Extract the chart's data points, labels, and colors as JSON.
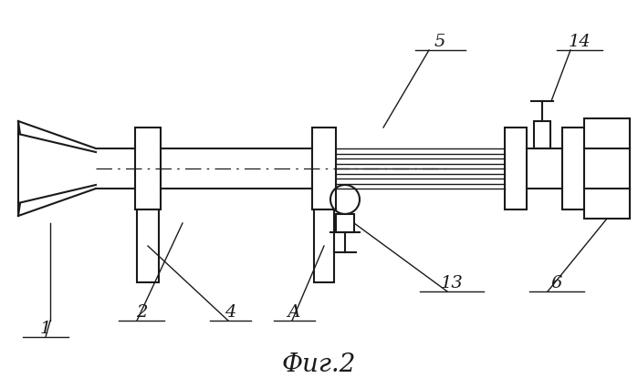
{
  "title": "Фиг.2",
  "title_fontsize": 20,
  "bg_color": "#ffffff",
  "line_color": "#1a1a1a",
  "figsize": [
    6.99,
    4.26
  ],
  "dpi": 100
}
